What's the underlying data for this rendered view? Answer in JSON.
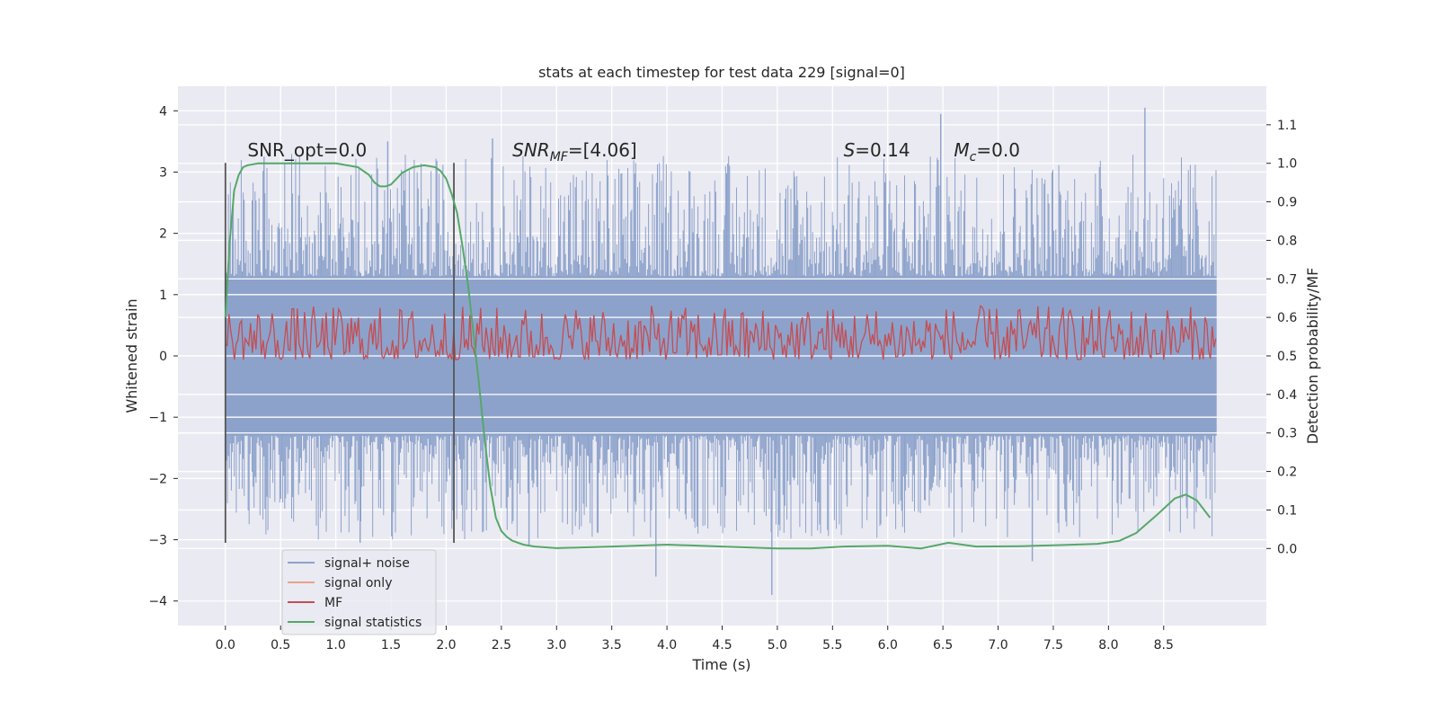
{
  "chart_data": {
    "type": "line",
    "title": "stats at each timestep for test data 229 [signal=0]",
    "xlabel": "Time (s)",
    "ylabel_left": "Whitened strain",
    "ylabel_right": "Detection probability/MF",
    "xlim": [
      -0.43,
      9.43
    ],
    "ylim_left": [
      -4.4,
      4.4
    ],
    "ylim_right": [
      -0.2,
      1.2
    ],
    "xticks": [
      "0.0",
      "0.5",
      "1.0",
      "1.5",
      "2.0",
      "2.5",
      "3.0",
      "3.5",
      "4.0",
      "4.5",
      "5.0",
      "5.5",
      "6.0",
      "6.5",
      "7.0",
      "7.5",
      "8.0",
      "8.5"
    ],
    "xtick_values": [
      0.0,
      0.5,
      1.0,
      1.5,
      2.0,
      2.5,
      3.0,
      3.5,
      4.0,
      4.5,
      5.0,
      5.5,
      6.0,
      6.5,
      7.0,
      7.5,
      8.0,
      8.5
    ],
    "yticks_left": [
      "−4",
      "−3",
      "−2",
      "−1",
      "0",
      "1",
      "2",
      "3",
      "4"
    ],
    "ytick_left_values": [
      -4,
      -3,
      -2,
      -1,
      0,
      1,
      2,
      3,
      4
    ],
    "yticks_right": [
      "0.0",
      "0.1",
      "0.2",
      "0.3",
      "0.4",
      "0.5",
      "0.6",
      "0.7",
      "0.8",
      "0.9",
      "1.0",
      "1.1"
    ],
    "ytick_right_values": [
      0.0,
      0.1,
      0.2,
      0.3,
      0.4,
      0.5,
      0.6,
      0.7,
      0.8,
      0.9,
      1.0,
      1.1
    ],
    "grid": true,
    "legend_position": "lower-left",
    "noise_band": {
      "x_start": 0.0,
      "x_end": 8.98,
      "core_low": -1.3,
      "core_high": 1.3,
      "spike_low": -3.0,
      "spike_high": 3.3
    },
    "noise_extremes": [
      {
        "x": 0.35,
        "y": 3.25
      },
      {
        "x": 1.47,
        "y": 3.5
      },
      {
        "x": 2.42,
        "y": 3.55
      },
      {
        "x": 3.9,
        "y": -3.6
      },
      {
        "x": 4.95,
        "y": -3.9
      },
      {
        "x": 6.48,
        "y": 3.95
      },
      {
        "x": 7.31,
        "y": -3.35
      },
      {
        "x": 8.33,
        "y": 4.05
      },
      {
        "x": 2.75,
        "y": -3.1
      },
      {
        "x": 1.22,
        "y": -3.05
      }
    ],
    "markers": [
      {
        "x": 0.0,
        "y_min": -3.05,
        "y_max": 3.15
      },
      {
        "x": 2.07,
        "y_min": -3.05,
        "y_max": 3.15
      }
    ],
    "annotations": [
      {
        "text": "SNR_opt=0.0",
        "x": 0.2,
        "y": 3.2
      },
      {
        "text_main": "SNR",
        "text_sub": "MF",
        "text_rest": "=[4.06]",
        "x": 2.6,
        "y": 3.2
      },
      {
        "text_main": "S",
        "text_rest": "=0.14",
        "x": 5.6,
        "y": 3.2
      },
      {
        "text_main": "M",
        "text_sub": "c",
        "text_rest": "=0.0",
        "x": 6.6,
        "y": 3.2
      }
    ],
    "series": [
      {
        "name": "signal+ noise",
        "color": "#8da2cb",
        "axis": "left",
        "note": "dense noise trace"
      },
      {
        "name": "signal only",
        "color": "#e7a489",
        "axis": "left",
        "values": []
      },
      {
        "name": "MF",
        "color": "#c44e52",
        "axis": "right",
        "band": {
          "low": 0.49,
          "high": 0.63
        }
      },
      {
        "name": "signal statistics",
        "color": "#55a868",
        "axis": "right",
        "x": [
          0.0,
          0.04,
          0.08,
          0.12,
          0.16,
          0.2,
          0.3,
          0.4,
          0.6,
          0.8,
          1.0,
          1.1,
          1.2,
          1.3,
          1.35,
          1.4,
          1.45,
          1.5,
          1.55,
          1.6,
          1.7,
          1.8,
          1.9,
          1.95,
          2.0,
          2.05,
          2.1,
          2.15,
          2.2,
          2.25,
          2.3,
          2.35,
          2.4,
          2.45,
          2.5,
          2.55,
          2.6,
          2.7,
          2.8,
          3.0,
          3.5,
          4.0,
          4.5,
          5.0,
          5.3,
          5.6,
          6.0,
          6.3,
          6.55,
          6.8,
          7.2,
          7.6,
          7.9,
          8.1,
          8.25,
          8.45,
          8.6,
          8.7,
          8.8,
          8.92
        ],
        "y": [
          0.6,
          0.8,
          0.93,
          0.97,
          0.99,
          0.995,
          1.0,
          1.0,
          1.0,
          1.0,
          1.0,
          0.995,
          0.99,
          0.97,
          0.95,
          0.94,
          0.94,
          0.945,
          0.96,
          0.975,
          0.99,
          0.995,
          0.99,
          0.98,
          0.96,
          0.92,
          0.87,
          0.78,
          0.68,
          0.55,
          0.42,
          0.28,
          0.16,
          0.08,
          0.045,
          0.03,
          0.02,
          0.01,
          0.005,
          0.001,
          0.005,
          0.01,
          0.005,
          0.0,
          0.0,
          0.005,
          0.007,
          0.0,
          0.015,
          0.005,
          0.006,
          0.009,
          0.012,
          0.02,
          0.04,
          0.09,
          0.13,
          0.14,
          0.125,
          0.08
        ]
      }
    ]
  },
  "colors": {
    "axes_bg": "#eaeaf2",
    "grid": "#ffffff",
    "noise": "#8da2cb",
    "signal_only": "#e7a489",
    "mf": "#c44e52",
    "stats": "#55a868",
    "marker": "#555555"
  }
}
